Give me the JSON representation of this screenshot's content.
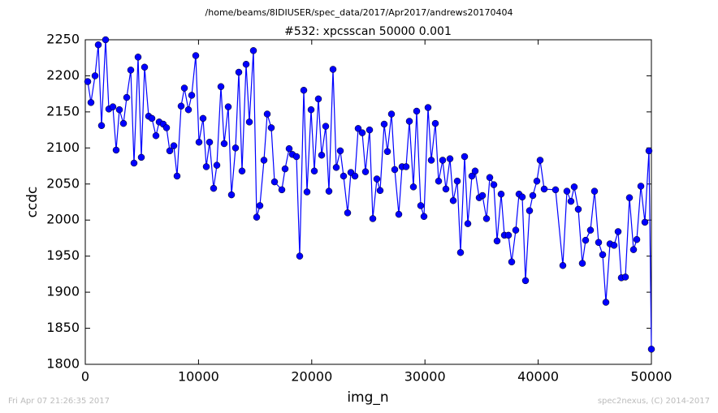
{
  "chart_data": {
    "type": "line",
    "suptitle": "/home/beams/8IDIUSER/spec_data/2017/Apr2017/andrews20170404",
    "title": "#532: xpcsscan 50000 0.001",
    "xlabel": "img_n",
    "ylabel": "ccdc",
    "footer_left": "Fri Apr 07 21:26:35 2017",
    "footer_right": "spec2nexus, (C) 2014-2017",
    "xlim": [
      0,
      50000
    ],
    "xticks": [
      0,
      10000,
      20000,
      30000,
      40000,
      50000
    ],
    "ylim": [
      1800,
      2250
    ],
    "yticks": [
      1800,
      1850,
      1900,
      1950,
      2000,
      2050,
      2100,
      2150,
      2200,
      2250
    ],
    "x": [
      215,
      502,
      861,
      1148,
      1435,
      1793,
      2080,
      2439,
      2726,
      3013,
      3372,
      3659,
      4017,
      4304,
      4663,
      4950,
      5237,
      5595,
      5882,
      6241,
      6528,
      6887,
      7174,
      7461,
      7819,
      8106,
      8465,
      8752,
      9110,
      9397,
      9756,
      10043,
      10402,
      10689,
      10976,
      11334,
      11621,
      11980,
      12267,
      12626,
      12913,
      13271,
      13558,
      13845,
      14204,
      14491,
      14849,
      15136,
      15423,
      15782,
      16069,
      16428,
      16715,
      17360,
      17647,
      18006,
      18293,
      18651,
      18938,
      19297,
      19584,
      19943,
      20230,
      20588,
      20875,
      21234,
      21521,
      21880,
      22167,
      22525,
      22812,
      23171,
      23458,
      23816,
      24103,
      24462,
      24749,
      25108,
      25395,
      25753,
      26040,
      26399,
      26686,
      27044,
      27331,
      27690,
      27977,
      28336,
      28623,
      28981,
      29268,
      29627,
      29914,
      30273,
      30560,
      30918,
      31205,
      31564,
      31851,
      32210,
      32497,
      32855,
      33142,
      33501,
      33788,
      34146,
      34433,
      34792,
      35079,
      35438,
      35725,
      36083,
      36370,
      36729,
      37016,
      37374,
      37661,
      38020,
      38307,
      38594,
      38881,
      39239,
      39526,
      39885,
      40172,
      40531,
      41535,
      42179,
      42538,
      42897,
      43184,
      43542,
      43901,
      44188,
      44618,
      44977,
      45336,
      45695,
      45982,
      46341,
      46700,
      47059,
      47346,
      47704,
      48063,
      48422,
      48709,
      49068,
      49426,
      49785,
      50000
    ],
    "series": [
      {
        "name": "ccdc",
        "color": "#0000ff",
        "values": [
          2192,
          2163,
          2200,
          2243,
          2131,
          2250,
          2154,
          2157,
          2097,
          2153,
          2134,
          2170,
          2208,
          2079,
          2226,
          2087,
          2212,
          2144,
          2141,
          2117,
          2136,
          2133,
          2128,
          2096,
          2103,
          2061,
          2158,
          2183,
          2153,
          2173,
          2228,
          2108,
          2141,
          2074,
          2108,
          2044,
          2076,
          2185,
          2106,
          2157,
          2035,
          2100,
          2205,
          2068,
          2216,
          2136,
          2235,
          2004,
          2020,
          2083,
          2147,
          2128,
          2053,
          2042,
          2071,
          2099,
          2091,
          2088,
          1950,
          2180,
          2039,
          2153,
          2068,
          2168,
          2090,
          2130,
          2040,
          2209,
          2073,
          2096,
          2061,
          2010,
          2066,
          2061,
          2127,
          2121,
          2067,
          2125,
          2002,
          2057,
          2041,
          2133,
          2095,
          2147,
          2070,
          2008,
          2074,
          2074,
          2137,
          2046,
          2151,
          2020,
          2005,
          2156,
          2083,
          2134,
          2054,
          2083,
          2043,
          2085,
          2027,
          2054,
          1955,
          2088,
          1995,
          2061,
          2068,
          2031,
          2034,
          2002,
          2059,
          2049,
          1971,
          2036,
          1979,
          1979,
          1942,
          1986,
          2036,
          2032,
          1916,
          2013,
          2034,
          2054,
          2083,
          2043,
          2042,
          1937,
          2040,
          2026,
          2046,
          2015,
          1940,
          1972,
          1986,
          2040,
          1969,
          1952,
          1886,
          1967,
          1965,
          1984,
          1920,
          1921,
          2031,
          1959,
          1973,
          2047,
          1997,
          2096,
          1821
        ]
      }
    ]
  }
}
